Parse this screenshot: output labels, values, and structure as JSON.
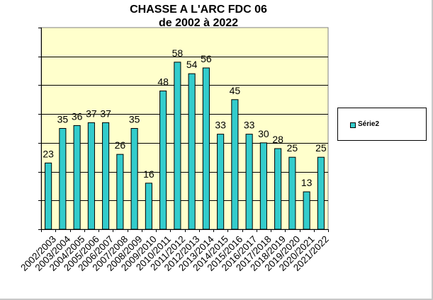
{
  "chart_data": {
    "type": "bar",
    "title": "CHASSE A L'ARC FDC 06",
    "subtitle": "de 2002 à 2022",
    "categories": [
      "2002/2003",
      "2003/2004",
      "2004/2005",
      "2005/2006",
      "2006/2007",
      "2007/2008",
      "2008/2009",
      "2009/2010",
      "2010/2011",
      "2011/2012",
      "2012/2013",
      "2013/2014",
      "2014/2015",
      "2015/2016",
      "2016/2017",
      "2017/2018",
      "2018/2019",
      "2019/2020",
      "2020/2021",
      "2021/2022"
    ],
    "series": [
      {
        "name": "Série2",
        "values": [
          23,
          35,
          36,
          37,
          37,
          26,
          35,
          16,
          48,
          58,
          54,
          56,
          33,
          45,
          33,
          30,
          28,
          25,
          13,
          25
        ]
      }
    ],
    "ylim": [
      0,
      70
    ],
    "grid": true,
    "legend": "right",
    "colors": {
      "bar": "#33cccc",
      "plot_bg": "#ffffcc",
      "grid": "#000000",
      "outline": "#000000"
    }
  }
}
